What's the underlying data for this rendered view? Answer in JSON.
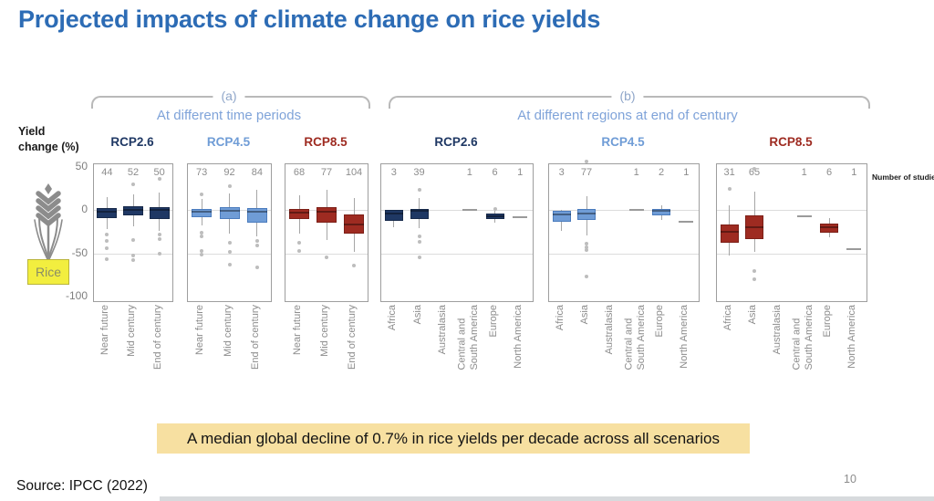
{
  "title": "Projected impacts of climate change on rice yields",
  "y_axis": {
    "label": "Yield\nchange (%)"
  },
  "notes": {
    "number_of_studies": "Number of studies"
  },
  "rice_label": "Rice",
  "callout": "A median global decline of 0.7% in rice yields per decade across all scenarios",
  "source": "Source: IPCC (2022)",
  "page_number": "10",
  "colors": {
    "title": "#2d6cb5",
    "subtitle": "#7fa3d9",
    "rcp26": "#1f3864",
    "rcp26_border": "#16294a",
    "rcp45": "#6f9cd6",
    "rcp45_border": "#4a7bbd",
    "rcp85": "#9e2b21",
    "rcp85_border": "#7c1f17",
    "callout_bg": "#f7e0a1",
    "rice_tag_bg": "#f2ee3f"
  },
  "chart_data": {
    "type": "boxplot",
    "title": "Projected impacts of climate change on rice yields",
    "ylabel": "Yield change (%)",
    "yticks": [
      50,
      0,
      -50,
      -100
    ],
    "ylim": [
      -106,
      53
    ],
    "gridlines": [
      0,
      -50
    ],
    "groups": [
      {
        "label": "(a)",
        "subtitle": "At different time periods",
        "categories": [
          "Near future",
          "Mid century",
          "End of century"
        ],
        "panels": [
          {
            "scenario": "RCP2.6",
            "color_key": "rcp26",
            "boxes": [
              {
                "n_studies": 44,
                "whisker_high": 15,
                "q3": 3,
                "median": -2,
                "q1": -9,
                "whisker_low": -22,
                "outliers": [
                  -28,
                  -36,
                  -44,
                  -57
                ]
              },
              {
                "n_studies": 52,
                "whisker_high": 18,
                "q3": 5,
                "median": 1,
                "q1": -6,
                "whisker_low": -19,
                "outliers": [
                  30,
                  -35,
                  -52,
                  -58
                ]
              },
              {
                "n_studies": 50,
                "whisker_high": 21,
                "q3": 4,
                "median": 0,
                "q1": -10,
                "whisker_low": -24,
                "outliers": [
                  37,
                  -28,
                  -33,
                  -50
                ]
              }
            ]
          },
          {
            "scenario": "RCP4.5",
            "color_key": "rcp45",
            "boxes": [
              {
                "n_studies": 73,
                "whisker_high": 13,
                "q3": 2,
                "median": -2,
                "q1": -8,
                "whisker_low": -18,
                "outliers": [
                  18,
                  -26,
                  -30,
                  -47,
                  -51
                ]
              },
              {
                "n_studies": 92,
                "whisker_high": 20,
                "q3": 4,
                "median": -1,
                "q1": -10,
                "whisker_low": -27,
                "outliers": [
                  28,
                  -38,
                  -48,
                  -63
                ]
              },
              {
                "n_studies": 84,
                "whisker_high": 24,
                "q3": 3,
                "median": -2,
                "q1": -14,
                "whisker_low": -30,
                "outliers": [
                  -36,
                  -41,
                  -66
                ]
              }
            ]
          },
          {
            "scenario": "RCP8.5",
            "color_key": "rcp85",
            "boxes": [
              {
                "n_studies": 68,
                "whisker_high": 17,
                "q3": 2,
                "median": -3,
                "q1": -10,
                "whisker_low": -27,
                "outliers": [
                  -38,
                  -47
                ]
              },
              {
                "n_studies": 77,
                "whisker_high": 24,
                "q3": 4,
                "median": -2,
                "q1": -14,
                "whisker_low": -34,
                "outliers": [
                  -55
                ]
              },
              {
                "n_studies": 104,
                "whisker_high": 14,
                "q3": -5,
                "median": -16,
                "q1": -27,
                "whisker_low": -48,
                "outliers": [
                  -64
                ]
              }
            ]
          }
        ]
      },
      {
        "label": "(b)",
        "subtitle": "At different regions at end of century",
        "categories": [
          "Africa",
          "Asia",
          "Australasia",
          "Central and\nSouth America",
          "Europe",
          "North America"
        ],
        "panels": [
          {
            "scenario": "RCP2.6",
            "color_key": "rcp26",
            "boxes": [
              {
                "n_studies": 3,
                "whisker_high": 0,
                "q3": 0,
                "median": -4,
                "q1": -12,
                "whisker_low": -20,
                "outliers": []
              },
              {
                "n_studies": 39,
                "whisker_high": 14,
                "q3": 2,
                "median": -1,
                "q1": -10,
                "whisker_low": -21,
                "outliers": [
                  24,
                  -30,
                  -37,
                  -55
                ]
              },
              null,
              {
                "n_studies": 1,
                "single_value": 1
              },
              {
                "n_studies": 6,
                "whisker_high": -1,
                "q3": -4,
                "median": -7,
                "q1": -10,
                "whisker_low": -14,
                "outliers": [
                  2
                ]
              },
              {
                "n_studies": 1,
                "single_value": -8
              }
            ]
          },
          {
            "scenario": "RCP4.5",
            "color_key": "rcp45",
            "boxes": [
              {
                "n_studies": 3,
                "whisker_high": 0,
                "q3": -1,
                "median": -5,
                "q1": -13,
                "whisker_low": -24,
                "outliers": []
              },
              {
                "n_studies": 77,
                "whisker_high": 16,
                "q3": 2,
                "median": -4,
                "q1": -11,
                "whisker_low": -29,
                "outliers": [
                  57,
                  -39,
                  -43,
                  -46,
                  -77
                ]
              },
              null,
              {
                "n_studies": 1,
                "single_value": 1
              },
              {
                "n_studies": 2,
                "whisker_high": 6,
                "q3": 2,
                "median": -1,
                "q1": -6,
                "whisker_low": -11,
                "outliers": []
              },
              {
                "n_studies": 1,
                "single_value": -13
              }
            ]
          },
          {
            "scenario": "RCP8.5",
            "color_key": "rcp85",
            "boxes": [
              {
                "n_studies": 31,
                "whisker_high": 6,
                "q3": -16,
                "median": -25,
                "q1": -38,
                "whisker_low": -52,
                "outliers": [
                  25
                ]
              },
              {
                "n_studies": 65,
                "whisker_high": 22,
                "q3": -6,
                "median": -20,
                "q1": -33,
                "whisker_low": -48,
                "outliers": [
                  48,
                  -70,
                  -80
                ]
              },
              null,
              {
                "n_studies": 1,
                "single_value": -7
              },
              {
                "n_studies": 6,
                "whisker_high": -9,
                "q3": -15,
                "median": -20,
                "q1": -26,
                "whisker_low": -31,
                "outliers": []
              },
              {
                "n_studies": 1,
                "single_value": -45
              }
            ]
          }
        ]
      }
    ]
  }
}
